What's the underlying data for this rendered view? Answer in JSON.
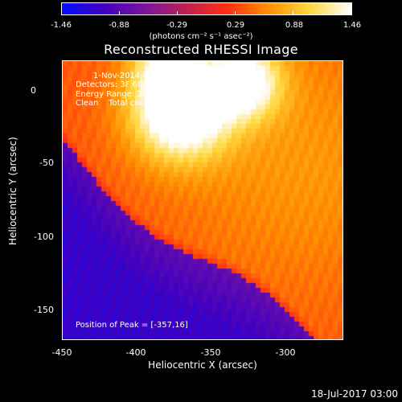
{
  "colorbar": {
    "ticks": [
      "-1.46",
      "-0.88",
      "-0.29",
      "0.29",
      "0.88",
      "1.46"
    ],
    "units": "(photons cm⁻² s⁻¹ asec⁻²)",
    "colormap": [
      "#0010ff",
      "#4000c0",
      "#7a14a0",
      "#c02050",
      "#ff3010",
      "#ff9000",
      "#ffd840",
      "#ffffff"
    ]
  },
  "plot": {
    "title": "Reconstructed RHESSI Image",
    "info_line1": "1-Nov-2014 00:21:24.000 to 00:31:24.000",
    "info_line2": "Detectors: 3F 6F 9F, Att 0",
    "info_line3": "Energy Range: 3.0 - 6.0 keV",
    "info_line4": "Clean    Total counts: 1.28E+05",
    "peak_label": "Position of Peak = [-357,16]",
    "xlabel": "Heliocentric X (arcsec)",
    "ylabel": "Heliocentric Y (arcsec)",
    "xticks": [
      "-450",
      "-400",
      "-350",
      "-300"
    ],
    "yticks": [
      "0",
      "-50",
      "-100",
      "-150"
    ]
  },
  "chart_data": {
    "type": "heatmap",
    "title": "Reconstructed RHESSI Image",
    "xlabel": "Heliocentric X (arcsec)",
    "ylabel": "Heliocentric Y (arcsec)",
    "xlim": [
      -457,
      -267
    ],
    "ylim": [
      -172,
      20
    ],
    "peak": [
      -357,
      16
    ],
    "value_range": [
      -1.46,
      1.46
    ]
  },
  "footer": {
    "timestamp": "18-Jul-2017 03:00"
  }
}
